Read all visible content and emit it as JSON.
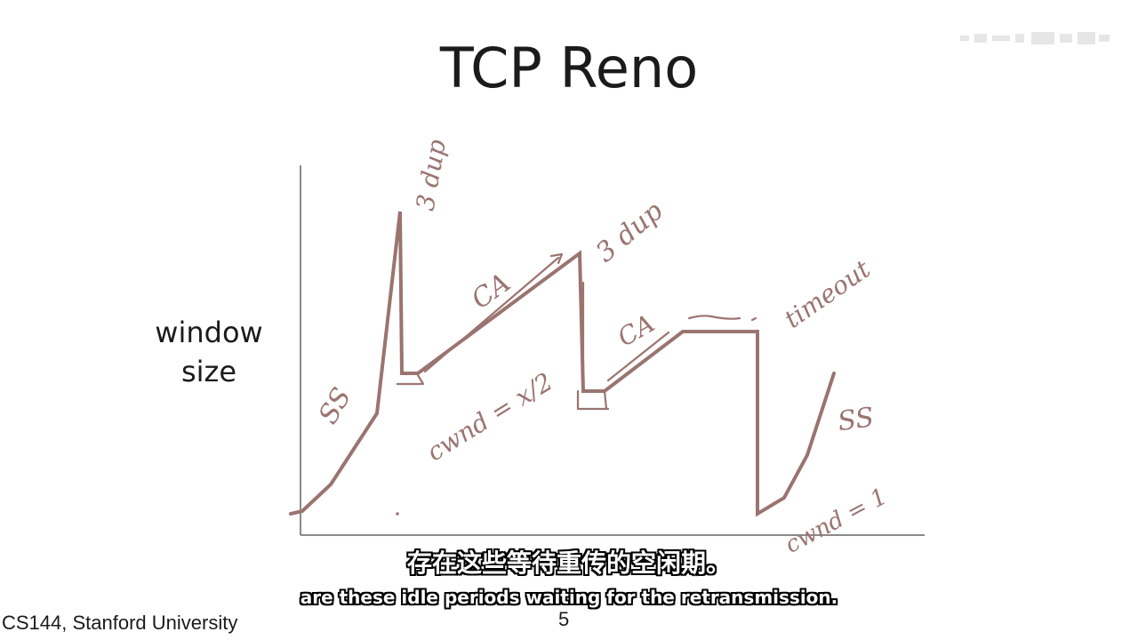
{
  "slide": {
    "title": "TCP Reno",
    "y_axis_label_line1": "window",
    "y_axis_label_line2": "size",
    "footer": "CS144, Stanford University",
    "page_number": "5"
  },
  "annotations": {
    "ss_left": "SS",
    "dup_1": "3 dup",
    "ca_1": "CA",
    "dup_2": "3 dup",
    "cwnd_half": "cwnd = x/2",
    "ca_2": "CA",
    "timeout": "timeout",
    "ss_right": "SS",
    "cwnd_one": "cwnd = 1"
  },
  "subtitles": {
    "zh": "存在这些等待重传的空闲期。",
    "en": "are these idle periods waiting for the retransmission."
  },
  "colors": {
    "ink": "#9a7470",
    "text": "#1b1b1b",
    "axis": "#8a8a8a"
  }
}
